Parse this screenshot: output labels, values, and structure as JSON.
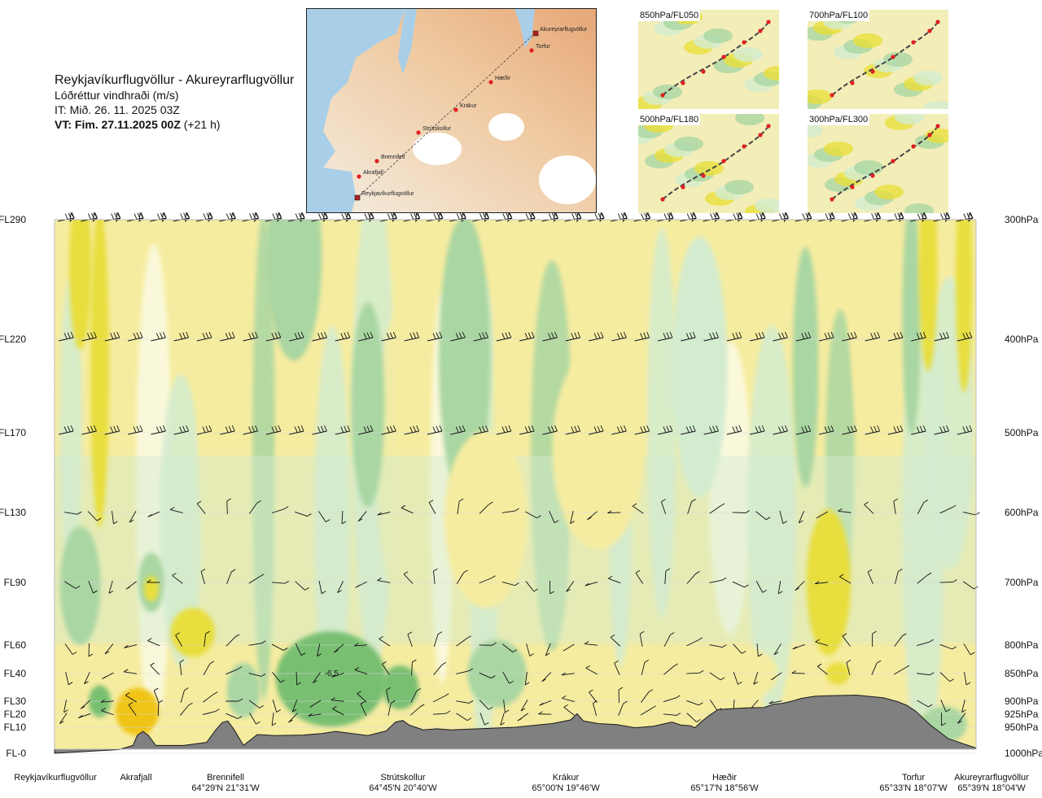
{
  "header": {
    "route": "Reykjavíkurflugvöllur - Akureyrarflugvöllur",
    "subtitle": "Lóðréttur vindhraði (m/s)",
    "issue_time": "IT: Mið. 26. 11. 2025 03Z",
    "valid_prefix": "VT: Fim. 27.11.2025 00Z",
    "valid_offset": "(+21 h)"
  },
  "map": {
    "waypoints": [
      {
        "label": "Akureyrarflugvöllur",
        "kind": "airport"
      },
      {
        "label": "Torfur",
        "kind": "point"
      },
      {
        "label": "Hæðir",
        "kind": "point"
      },
      {
        "label": "Krákur",
        "kind": "point"
      },
      {
        "label": "Strútskollur",
        "kind": "point"
      },
      {
        "label": "Brennifell",
        "kind": "point"
      },
      {
        "label": "Akrafjall",
        "kind": "point"
      },
      {
        "label": "Reykjavíkurflugvöllur",
        "kind": "airport"
      }
    ]
  },
  "thumbnails": [
    {
      "label": "850hPa/FL050"
    },
    {
      "label": "700hPa/FL100"
    },
    {
      "label": "500hPa/FL180"
    },
    {
      "label": "300hPa/FL300"
    }
  ],
  "colors": {
    "strong_down": "#8a3b12",
    "down3": "#e38a1a",
    "down2": "#f0c419",
    "down1": "#e8de3c",
    "weak_down": "#f6eca0",
    "neutral": "#fbfbe6",
    "weak_up": "#d3ecd0",
    "up1": "#a9d6a2",
    "up2": "#78bf72",
    "up3": "#3f9f42",
    "strong_up": "#1e7a2a",
    "terrain": "#808080"
  },
  "chart_data": {
    "type": "heatmap",
    "title": "Lóðréttur vindhraði (m/s)",
    "x_range": [
      0,
      100
    ],
    "left_axis_levels": [
      {
        "label": "FL290",
        "hpa": 300
      },
      {
        "label": "FL220",
        "hpa": 400
      },
      {
        "label": "FL170",
        "hpa": 500
      },
      {
        "label": "FL130",
        "hpa": 600
      },
      {
        "label": "FL90",
        "hpa": 700
      },
      {
        "label": "FL60",
        "hpa": 800
      },
      {
        "label": "FL40",
        "hpa": 850
      },
      {
        "label": "FL30",
        "hpa": 900
      },
      {
        "label": "FL20",
        "hpa": 925
      },
      {
        "label": "FL10",
        "hpa": 950
      },
      {
        "label": "FL-0",
        "hpa": 1000
      }
    ],
    "right_axis_levels": [
      {
        "label": "300hPa",
        "hpa": 300
      },
      {
        "label": "400hPa",
        "hpa": 400
      },
      {
        "label": "500hPa",
        "hpa": 500
      },
      {
        "label": "600hPa",
        "hpa": 600
      },
      {
        "label": "700hPa",
        "hpa": 700
      },
      {
        "label": "800hPa",
        "hpa": 800
      },
      {
        "label": "850hPa",
        "hpa": 850
      },
      {
        "label": "900hPa",
        "hpa": 900
      },
      {
        "label": "925hPa",
        "hpa": 925
      },
      {
        "label": "950hPa",
        "hpa": 950
      },
      {
        "label": "1000hPa",
        "hpa": 1000
      }
    ],
    "waypoints": [
      {
        "name": "Reykjavíkurflugvöllur",
        "coord": "",
        "x": 0
      },
      {
        "name": "Akrafjall",
        "coord": "",
        "x": 8.9
      },
      {
        "name": "Brennifell",
        "coord": "64°29'N 21°31'W",
        "x": 18.6
      },
      {
        "name": "Strútskollur",
        "coord": "64°45'N 20°40'W",
        "x": 37.8
      },
      {
        "name": "Krákur",
        "coord": "65°00'N 19°46'W",
        "x": 56.7
      },
      {
        "name": "Hæðir",
        "coord": "65°17'N 18°56'W",
        "x": 75.9
      },
      {
        "name": "Torfur",
        "coord": "65°33'N 18°07'W",
        "x": 95.0
      },
      {
        "name": "Akureyrarflugvöllur",
        "coord": "65°39'N 18°04'W",
        "x": 100
      }
    ],
    "terrain_profile": {
      "x": [
        0,
        3,
        7,
        8.5,
        9,
        9.6,
        10.2,
        11,
        14,
        16.5,
        17.5,
        18.2,
        18.8,
        19.5,
        20.5,
        21,
        22,
        24,
        27,
        29,
        30.5,
        34,
        36,
        37,
        37.8,
        38.5,
        40,
        41.5,
        43,
        46,
        50,
        54,
        56,
        56.7,
        57.4,
        59,
        61,
        63,
        65,
        67,
        68,
        69,
        69.5,
        70.2,
        71,
        72,
        75,
        77,
        78,
        79,
        80,
        81,
        82.5,
        84,
        87,
        90,
        91.5,
        92.5,
        93.5,
        95,
        97,
        100
      ],
      "y": [
        1000,
        997,
        993,
        985,
        965,
        958,
        966,
        985,
        985,
        979,
        955,
        941,
        938,
        955,
        985,
        978,
        964,
        966,
        965,
        962,
        958,
        966,
        957,
        940,
        937,
        946,
        955,
        953,
        955,
        953,
        950,
        943,
        936,
        924,
        938,
        943,
        945,
        951,
        948,
        940,
        946,
        947,
        951,
        939,
        928,
        916,
        913,
        912,
        906,
        904,
        900,
        895,
        891,
        890,
        889,
        894,
        901,
        908,
        920,
        945,
        972,
        990
      ]
    },
    "vertical_velocity_cells": [
      {
        "x": 2.8,
        "hpa": 705,
        "rx": 1.2,
        "ry": 55,
        "v": -1.6
      },
      {
        "x": 2.8,
        "hpa": 705,
        "rx": 2.2,
        "ry": 90,
        "v": -0.8
      },
      {
        "x": 4.9,
        "hpa": 900,
        "rx": 1.2,
        "ry": 30,
        "v": -1.0
      },
      {
        "x": 9.3,
        "hpa": 935,
        "rx": 1.0,
        "ry": 20,
        "v": 2.2
      },
      {
        "x": 9.0,
        "hpa": 920,
        "rx": 2.4,
        "ry": 45,
        "v": 1.0
      },
      {
        "x": 15.0,
        "hpa": 780,
        "rx": 2.4,
        "ry": 40,
        "v": 0.8
      },
      {
        "x": 10.5,
        "hpa": 700,
        "rx": 1.4,
        "ry": 45,
        "v": -0.8
      },
      {
        "x": 10.5,
        "hpa": 710,
        "rx": 0.8,
        "ry": 20,
        "v": 0.6
      },
      {
        "x": 4.9,
        "hpa": 430,
        "rx": 1.0,
        "ry": 160,
        "v": 0.6
      },
      {
        "x": 2.8,
        "hpa": 340,
        "rx": 1.2,
        "ry": 70,
        "v": 0.5
      },
      {
        "x": 20.5,
        "hpa": 880,
        "rx": 1.8,
        "ry": 50,
        "v": -0.8
      },
      {
        "x": 26.0,
        "hpa": 330,
        "rx": 3.0,
        "ry": 90,
        "v": -0.5
      },
      {
        "x": 30.0,
        "hpa": 860,
        "rx": 4.5,
        "ry": 55,
        "v": -2.0
      },
      {
        "x": 30.0,
        "hpa": 860,
        "rx": 6.0,
        "ry": 85,
        "v": -1.0
      },
      {
        "x": 37.5,
        "hpa": 875,
        "rx": 2.0,
        "ry": 40,
        "v": -1.0
      },
      {
        "x": 44.5,
        "hpa": 420,
        "rx": 2.8,
        "ry": 140,
        "v": -0.6
      },
      {
        "x": 46.8,
        "hpa": 610,
        "rx": 4.5,
        "ry": 120,
        "v": 0.4
      },
      {
        "x": 48.0,
        "hpa": 850,
        "rx": 2.0,
        "ry": 40,
        "v": -1.6
      },
      {
        "x": 48.0,
        "hpa": 850,
        "rx": 3.2,
        "ry": 60,
        "v": -0.6
      },
      {
        "x": 34.0,
        "hpa": 470,
        "rx": 1.8,
        "ry": 110,
        "v": -0.5
      },
      {
        "x": 59.0,
        "hpa": 520,
        "rx": 5.0,
        "ry": 120,
        "v": 0.4
      },
      {
        "x": 70.0,
        "hpa": 430,
        "rx": 3.0,
        "ry": 130,
        "v": -0.4
      },
      {
        "x": 75.0,
        "hpa": 850,
        "rx": 3.5,
        "ry": 45,
        "v": 0.4
      },
      {
        "x": 84.0,
        "hpa": 700,
        "rx": 2.4,
        "ry": 110,
        "v": 0.5
      },
      {
        "x": 81.5,
        "hpa": 430,
        "rx": 1.4,
        "ry": 120,
        "v": -0.5
      },
      {
        "x": 89.0,
        "hpa": 380,
        "rx": 2.6,
        "ry": 130,
        "v": 0.4
      },
      {
        "x": 93.0,
        "hpa": 380,
        "rx": 1.0,
        "ry": 110,
        "v": -0.6
      },
      {
        "x": 94.8,
        "hpa": 340,
        "rx": 1.0,
        "ry": 90,
        "v": 0.6
      },
      {
        "x": 98.7,
        "hpa": 350,
        "rx": 0.9,
        "ry": 100,
        "v": 0.8
      },
      {
        "x": 94.5,
        "hpa": 960,
        "rx": 1.6,
        "ry": 30,
        "v": 0.8
      },
      {
        "x": 96.5,
        "hpa": 945,
        "rx": 2.5,
        "ry": 35,
        "v": -0.6
      },
      {
        "x": 85.0,
        "hpa": 850,
        "rx": 1.3,
        "ry": 20,
        "v": 0.8
      }
    ],
    "annotation": "-6.5",
    "barb_levels_hpa": [
      300,
      400,
      500,
      600,
      700,
      800,
      850,
      900,
      925
    ],
    "barb_columns": 40
  }
}
